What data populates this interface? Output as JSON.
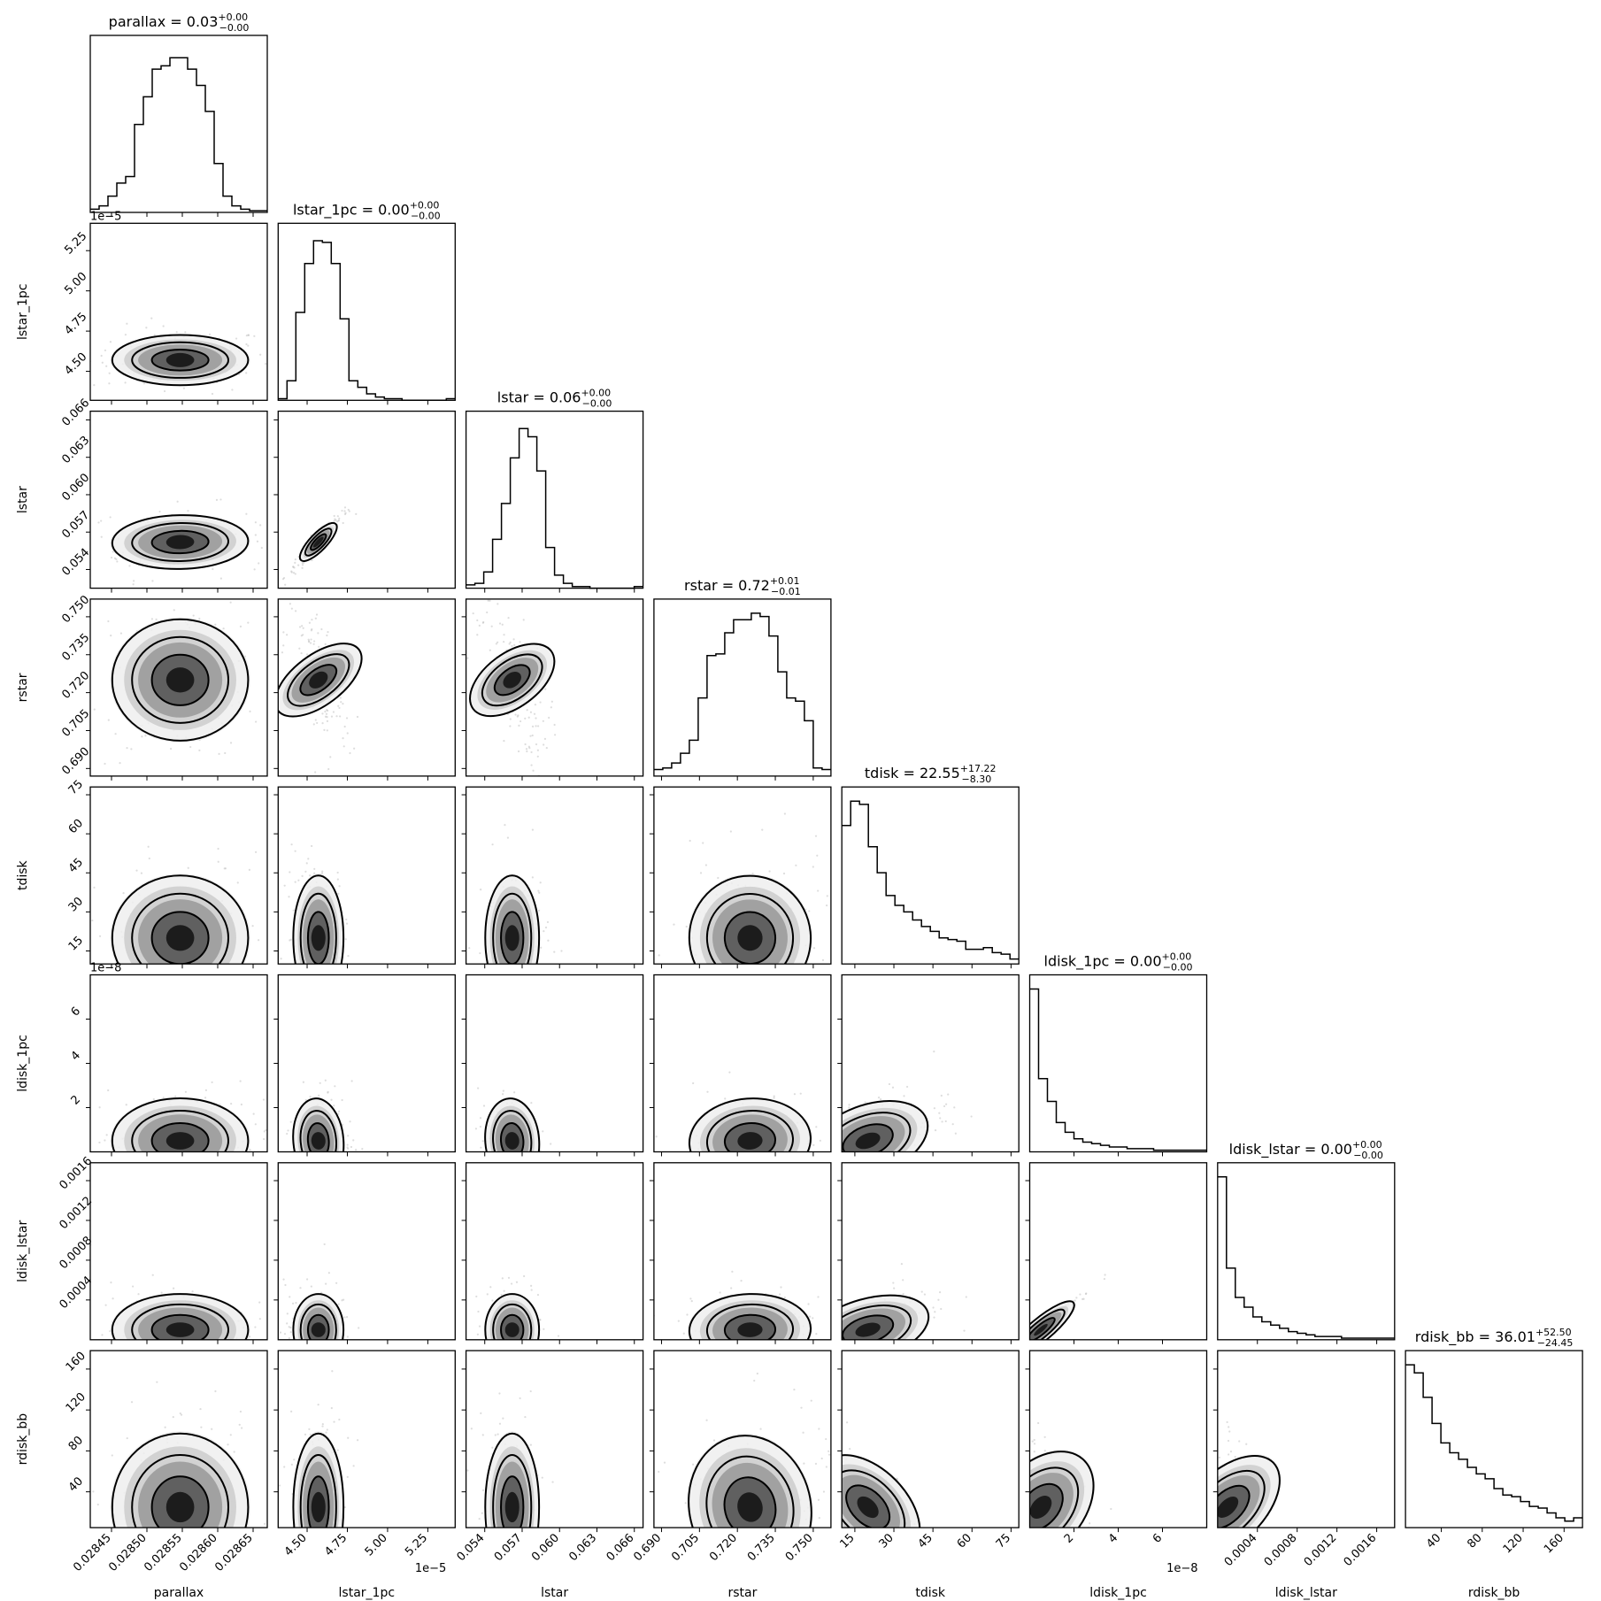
{
  "chart_data": {
    "type": "corner",
    "params": [
      "parallax",
      "lstar_1pc",
      "lstar",
      "rstar",
      "tdisk",
      "ldisk_1pc",
      "ldisk_lstar",
      "rdisk_bb"
    ],
    "titles": [
      {
        "label": "parallax = 0.03",
        "plus": "+0.00",
        "minus": "−0.00"
      },
      {
        "label": "lstar_1pc = 0.00",
        "plus": "+0.00",
        "minus": "−0.00"
      },
      {
        "label": "lstar = 0.06",
        "plus": "+0.00",
        "minus": "−0.00"
      },
      {
        "label": "rstar = 0.72",
        "plus": "+0.01",
        "minus": "−0.01"
      },
      {
        "label": "tdisk = 22.55",
        "plus": "+17.22",
        "minus": "−8.30"
      },
      {
        "label": "ldisk_1pc = 0.00",
        "plus": "+0.00",
        "minus": "−0.00"
      },
      {
        "label": "ldisk_lstar = 0.00",
        "plus": "+0.00",
        "minus": "−0.00"
      },
      {
        "label": "rdisk_bb = 36.01",
        "plus": "+52.50",
        "minus": "−24.45"
      }
    ],
    "axes": [
      {
        "name": "parallax",
        "range": [
          0.02842,
          0.02867
        ],
        "ticks": [
          0.02845,
          0.0285,
          0.02855,
          0.0286,
          0.02865
        ],
        "tick_labels": [
          "0.02845",
          "0.02850",
          "0.02855",
          "0.02860",
          "0.02865"
        ],
        "offset": ""
      },
      {
        "name": "lstar_1pc",
        "range": [
          4.32,
          5.42
        ],
        "ticks": [
          4.5,
          4.75,
          5.0,
          5.25
        ],
        "tick_labels": [
          "4.50",
          "4.75",
          "5.00",
          "5.25"
        ],
        "offset": "1e−5"
      },
      {
        "name": "lstar",
        "range": [
          0.0525,
          0.0667
        ],
        "ticks": [
          0.054,
          0.057,
          0.06,
          0.063,
          0.066
        ],
        "tick_labels": [
          "0.054",
          "0.057",
          "0.060",
          "0.063",
          "0.066"
        ],
        "offset": ""
      },
      {
        "name": "rstar",
        "range": [
          0.687,
          0.757
        ],
        "ticks": [
          0.69,
          0.705,
          0.72,
          0.735,
          0.75
        ],
        "tick_labels": [
          "0.690",
          "0.705",
          "0.720",
          "0.735",
          "0.750"
        ],
        "offset": ""
      },
      {
        "name": "tdisk",
        "range": [
          10,
          78
        ],
        "ticks": [
          15,
          30,
          45,
          60,
          75
        ],
        "tick_labels": [
          "15",
          "30",
          "45",
          "60",
          "75"
        ],
        "offset": ""
      },
      {
        "name": "ldisk_1pc",
        "range": [
          0.0,
          8.0
        ],
        "ticks": [
          2,
          4,
          6
        ],
        "tick_labels": [
          "2",
          "4",
          "6"
        ],
        "offset": "1e−8"
      },
      {
        "name": "ldisk_lstar",
        "range": [
          0.0,
          0.00178
        ],
        "ticks": [
          0.0004,
          0.0008,
          0.0012,
          0.0016
        ],
        "tick_labels": [
          "0.0004",
          "0.0008",
          "0.0012",
          "0.0016"
        ],
        "offset": ""
      },
      {
        "name": "rdisk_bb",
        "range": [
          5,
          178
        ],
        "ticks": [
          40,
          80,
          120,
          160
        ],
        "tick_labels": [
          "40",
          "80",
          "120",
          "160"
        ],
        "offset": ""
      }
    ],
    "histograms": [
      [
        2,
        4,
        10,
        18,
        22,
        54,
        71,
        88,
        90,
        95,
        95,
        88,
        78,
        62,
        30,
        10,
        4,
        2,
        1,
        1
      ],
      [
        1,
        12,
        54,
        84,
        98,
        97,
        84,
        50,
        12,
        8,
        4,
        2,
        1,
        1,
        0,
        0,
        0,
        0,
        0,
        1
      ],
      [
        2,
        3,
        10,
        30,
        52,
        80,
        98,
        93,
        72,
        25,
        8,
        3,
        1,
        1,
        0,
        0,
        0,
        0,
        0,
        1
      ],
      [
        4,
        5,
        8,
        14,
        22,
        48,
        74,
        75,
        88,
        96,
        96,
        100,
        98,
        86,
        64,
        48,
        46,
        34,
        5,
        4
      ],
      [
        85,
        100,
        98,
        72,
        56,
        42,
        36,
        32,
        27,
        23,
        20,
        16,
        15,
        14,
        9,
        9,
        10,
        7,
        6,
        3
      ],
      [
        100,
        45,
        31,
        18,
        12,
        8,
        6,
        5,
        4,
        3,
        3,
        2,
        2,
        2,
        1,
        1,
        1,
        1,
        1,
        1
      ],
      [
        100,
        44,
        26,
        20,
        14,
        11,
        9,
        7,
        5,
        4,
        3,
        2,
        2,
        2,
        1,
        1,
        1,
        1,
        1,
        1
      ],
      [
        100,
        95,
        80,
        64,
        52,
        46,
        42,
        37,
        33,
        30,
        24,
        20,
        19,
        16,
        13,
        12,
        9,
        6,
        4,
        6
      ]
    ],
    "correlations": {
      "0,1": 0.0,
      "0,2": 0.05,
      "0,3": 0.0,
      "0,4": 0.0,
      "0,5": 0.0,
      "0,6": 0.0,
      "0,7": 0.0,
      "1,2": 0.97,
      "1,3": -0.55,
      "1,4": 0.0,
      "1,5": 0.05,
      "1,6": 0.0,
      "1,7": 0.0,
      "2,3": -0.6,
      "2,4": 0.0,
      "2,5": 0.05,
      "2,6": 0.0,
      "2,7": 0.0,
      "3,4": 0.1,
      "3,5": 0.1,
      "3,6": 0.05,
      "3,7": 0.2,
      "4,5": 0.55,
      "4,6": 0.5,
      "4,7": -0.85,
      "5,6": 0.99,
      "5,7": -0.5,
      "6,7": -0.5
    },
    "grid": false,
    "legend": "none"
  }
}
